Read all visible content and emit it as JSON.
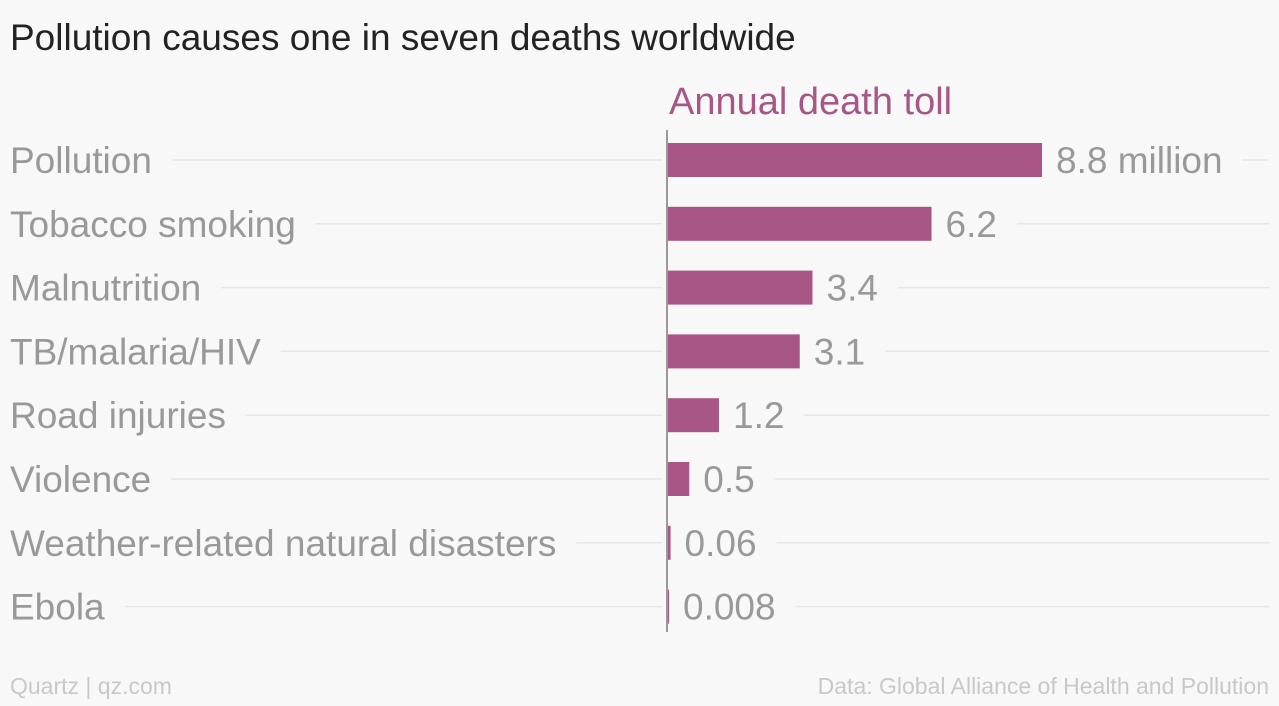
{
  "chart_data": {
    "type": "bar",
    "orientation": "horizontal",
    "title": "Pollution causes one in seven deaths worldwide",
    "series_header": "Annual death toll",
    "categories": [
      "Pollution",
      "Tobacco smoking",
      "Malnutrition",
      "TB/malaria/HIV",
      "Road injuries",
      "Violence",
      "Weather-related natural disasters",
      "Ebola"
    ],
    "values": [
      8.8,
      6.2,
      3.4,
      3.1,
      1.2,
      0.5,
      0.06,
      0.008
    ],
    "value_labels": [
      "8.8 million",
      "6.2",
      "3.4",
      "3.1",
      "1.2",
      "0.5",
      "0.06",
      "0.008"
    ],
    "unit": "million",
    "xlim": [
      0,
      8.8
    ],
    "grid": true,
    "legend": "none",
    "colors": {
      "bar": "#a85686",
      "header": "#a85686",
      "title": "#222222",
      "category_label": "#999999",
      "value_label": "#999999",
      "gridline": "#e6e6e6",
      "axis": "#999999",
      "footer": "#c8c8c8",
      "background": "#f8f8f8"
    }
  },
  "footer": {
    "credit": "Quartz | qz.com",
    "source": "Data: Global Alliance of Health and Pollution"
  }
}
